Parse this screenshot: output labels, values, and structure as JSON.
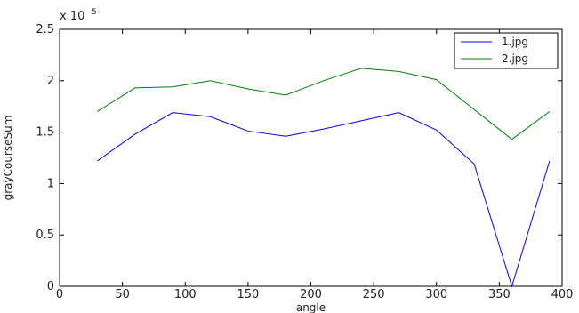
{
  "chart_data": {
    "type": "line",
    "title": "",
    "xlabel": "angle",
    "ylabel": "grayCourseSum",
    "xlim": [
      0,
      400
    ],
    "ylim": [
      0,
      2.5
    ],
    "y_multiplier_label": "x 10",
    "y_multiplier_exponent": "5",
    "xticks": [
      0,
      50,
      100,
      150,
      200,
      250,
      300,
      350,
      400
    ],
    "yticks": [
      0,
      0.5,
      1,
      1.5,
      2,
      2.5
    ],
    "grid": false,
    "legend_position": "top-right",
    "series": [
      {
        "name": "1.jpg",
        "color": "#0000ff",
        "x": [
          30,
          60,
          90,
          120,
          150,
          180,
          210,
          240,
          270,
          300,
          330,
          360,
          390
        ],
        "y": [
          1.22,
          1.48,
          1.69,
          1.65,
          1.51,
          1.46,
          1.53,
          1.61,
          1.69,
          1.52,
          1.19,
          0.0,
          1.22
        ]
      },
      {
        "name": "2.jpg",
        "color": "#008000",
        "x": [
          30,
          60,
          90,
          120,
          150,
          180,
          210,
          240,
          270,
          300,
          330,
          360,
          390
        ],
        "y": [
          1.7,
          1.93,
          1.94,
          2.0,
          1.92,
          1.86,
          2.0,
          2.12,
          2.09,
          2.01,
          1.72,
          1.43,
          1.7
        ]
      }
    ]
  }
}
